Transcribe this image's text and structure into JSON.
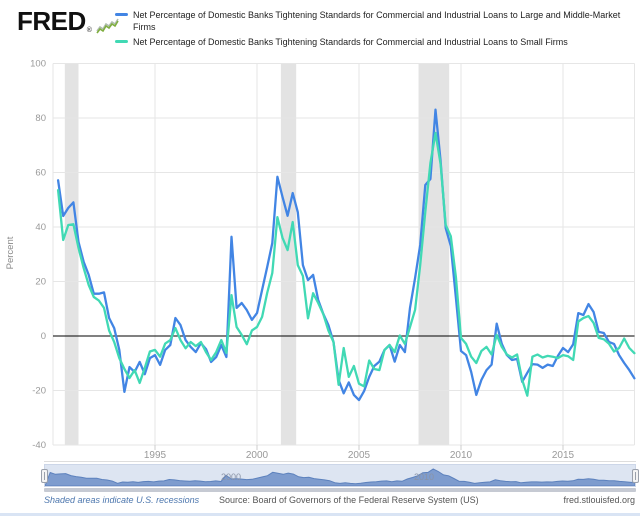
{
  "header": {
    "brand": "FRED",
    "registered_mark": "®",
    "legend": [
      {
        "label": "Net Percentage of Domestic Banks Tightening Standards for Commercial and Industrial Loans to Large and Middle-Market Firms",
        "color": "#4285e4"
      },
      {
        "label": "Net Percentage of Domestic Banks Tightening Standards for Commercial and Industrial Loans to Small Firms",
        "color": "#41d9b4"
      }
    ]
  },
  "navigator": {
    "labels": [
      "2000",
      "2010"
    ]
  },
  "footer": {
    "recession_note": "Shaded areas indicate U.S. recessions",
    "source": "Source: Board of Governors of the Federal Reserve System (US)",
    "site": "fred.stlouisfed.org"
  },
  "chart_data": {
    "type": "line",
    "title": "",
    "xlabel": "",
    "ylabel": "Percent",
    "ylim": [
      -40,
      100
    ],
    "y_ticks": [
      100,
      80,
      60,
      40,
      20,
      0,
      -20,
      -40
    ],
    "x_tick_years": [
      1995,
      2000,
      2005,
      2010,
      2015
    ],
    "x_start": 1990.25,
    "x_step": 0.25,
    "x_end": 2018.5,
    "grid": true,
    "legend_position": "top",
    "zero_line": true,
    "recessions": [
      [
        1990.58,
        1991.25
      ],
      [
        2001.17,
        2001.92
      ],
      [
        2007.92,
        2009.42
      ]
    ],
    "series": [
      {
        "name": "Net Percentage of Domestic Banks Tightening Standards for Commercial and Industrial Loans to Large and Middle-Market Firms",
        "color": "#4285e4",
        "values": [
          57.1,
          44,
          47,
          49,
          34.5,
          27.3,
          22.4,
          15.5,
          15.5,
          16,
          6.6,
          2.9,
          -5.1,
          -20.5,
          -11.4,
          -13.2,
          -9.5,
          -14,
          -8.1,
          -7,
          -10.6,
          -5.1,
          -3.3,
          6.6,
          4,
          -1.5,
          -4,
          -5.9,
          -2.6,
          -4.8,
          -9.5,
          -7.7,
          -3.3,
          -7.7,
          36.4,
          10.3,
          12.1,
          9.5,
          5.9,
          8.4,
          16.9,
          25.3,
          34.1,
          58.4,
          51,
          44.1,
          52.4,
          45.4,
          26,
          20.5,
          22.4,
          13.2,
          8.1,
          4,
          -2.2,
          -16.1,
          -21,
          -17,
          -21.6,
          -23.5,
          -20.2,
          -15,
          -11,
          -9.4,
          -5.1,
          -3.3,
          -9.4,
          -3.3,
          -5.9,
          10.3,
          21.3,
          33.4,
          55.4,
          57.6,
          83,
          64.2,
          39.6,
          33,
          14,
          -5.5,
          -7,
          -13.2,
          -21.6,
          -16.1,
          -12.5,
          -10.5,
          4.5,
          -2.9,
          -7,
          -8.8,
          -8.4,
          -16.8,
          -13.5,
          -10.3,
          -10.5,
          -11.7,
          -10.5,
          -11,
          -7.3,
          -4.4,
          -5.9,
          -3,
          8.4,
          7.7,
          11.7,
          8.8,
          1.5,
          1.1,
          -2.2,
          -2.9,
          -7,
          -9.9,
          -12.5,
          -15.5
        ]
      },
      {
        "name": "Net Percentage of Domestic Banks Tightening Standards for Commercial and Industrial Loans to Small Firms",
        "color": "#41d9b4",
        "values": [
          53.5,
          35.2,
          40.7,
          41,
          32.3,
          25,
          18.7,
          14.3,
          13,
          10.3,
          2,
          -2.2,
          -8.1,
          -12.1,
          -15.4,
          -12.5,
          -17.2,
          -11.7,
          -5.7,
          -5.1,
          -7.6,
          -2.8,
          -1.5,
          2.9,
          -1.5,
          -4.5,
          -2.2,
          -3.7,
          -2.2,
          -5.9,
          -8.8,
          -5.9,
          -1.5,
          -6.2,
          15,
          3.3,
          0.4,
          -3,
          2,
          3.3,
          7,
          15.8,
          23.1,
          43.6,
          36,
          31.5,
          41.8,
          26,
          22,
          6.5,
          15.7,
          12.1,
          8,
          2,
          -2.2,
          -17.9,
          -4.4,
          -15,
          -11,
          -17.5,
          -18.5,
          -9,
          -12.1,
          -12.5,
          -5.1,
          -3.3,
          -5.9,
          0.2,
          -2.9,
          3.3,
          9.6,
          26,
          45.5,
          63.4,
          74.5,
          63,
          40.7,
          36.6,
          21.6,
          -0.7,
          -2.9,
          -7.6,
          -9.9,
          -5.5,
          -4,
          -6.8,
          0.4,
          -4,
          -6.8,
          -7.9,
          -6.8,
          -16.1,
          -21.9,
          -7.6,
          -6.8,
          -7.9,
          -7.3,
          -7.6,
          -8.1,
          -7,
          -7.4,
          -8.8,
          5.3,
          6.6,
          7.3,
          4.8,
          -0.7,
          -1.2,
          -2.8,
          -5.7,
          -4.4,
          -0.9,
          -4.4,
          -6.3
        ]
      }
    ]
  }
}
